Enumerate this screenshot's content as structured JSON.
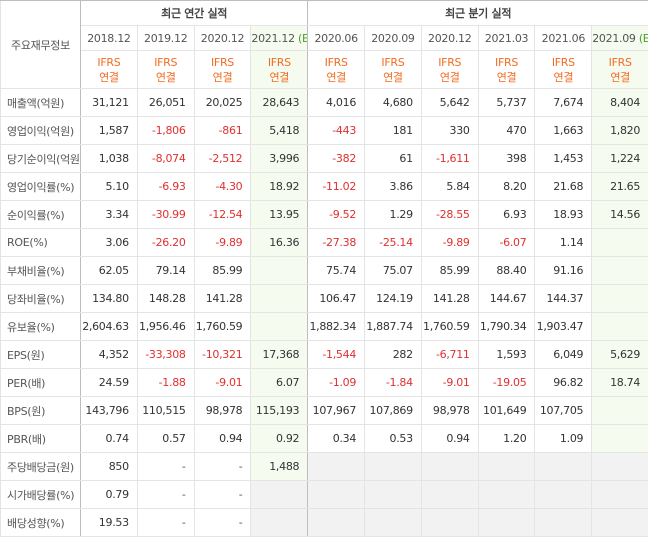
{
  "table": {
    "corner_label": "주요재무정보",
    "section_headers": [
      {
        "label": "최근 연간 실적",
        "span": 4
      },
      {
        "label": "최근 분기 실적",
        "span": 6
      }
    ],
    "periods": [
      {
        "label": "2018.12"
      },
      {
        "label": "2019.12"
      },
      {
        "label": "2020.12"
      },
      {
        "label": "2021.12",
        "mark": "(E)"
      },
      {
        "label": "2020.06"
      },
      {
        "label": "2020.09"
      },
      {
        "label": "2020.12"
      },
      {
        "label": "2021.03"
      },
      {
        "label": "2021.06"
      },
      {
        "label": "2021.09",
        "mark": "(E)"
      }
    ],
    "accounting_basis": {
      "standard": "IFRS",
      "scope": "연결"
    },
    "groups": [
      {
        "rows": [
          {
            "label": "매출액(억원)",
            "cells": [
              "31,121",
              "26,051",
              "20,025",
              "28,643",
              "4,016",
              "4,680",
              "5,642",
              "5,737",
              "7,674",
              "8,404"
            ]
          },
          {
            "label": "영업이익(억원)",
            "cells": [
              "1,587",
              "-1,806",
              "-861",
              "5,418",
              "-443",
              "181",
              "330",
              "470",
              "1,663",
              "1,820"
            ]
          },
          {
            "label": "당기순이익(억원)",
            "cells": [
              "1,038",
              "-8,074",
              "-2,512",
              "3,996",
              "-382",
              "61",
              "-1,611",
              "398",
              "1,453",
              "1,224"
            ]
          }
        ]
      },
      {
        "rows": [
          {
            "label": "영업이익률(%)",
            "cells": [
              "5.10",
              "-6.93",
              "-4.30",
              "18.92",
              "-11.02",
              "3.86",
              "5.84",
              "8.20",
              "21.68",
              "21.65"
            ]
          },
          {
            "label": "순이익률(%)",
            "cells": [
              "3.34",
              "-30.99",
              "-12.54",
              "13.95",
              "-9.52",
              "1.29",
              "-28.55",
              "6.93",
              "18.93",
              "14.56"
            ]
          },
          {
            "label": "ROE(%)",
            "cells": [
              "3.06",
              "-26.20",
              "-9.89",
              "16.36",
              "-27.38",
              "-25.14",
              "-9.89",
              "-6.07",
              "1.14",
              null
            ]
          }
        ]
      },
      {
        "rows": [
          {
            "label": "부채비율(%)",
            "cells": [
              "62.05",
              "79.14",
              "85.99",
              null,
              "75.74",
              "75.07",
              "85.99",
              "88.40",
              "91.16",
              null
            ]
          },
          {
            "label": "당좌비율(%)",
            "cells": [
              "134.80",
              "148.28",
              "141.28",
              null,
              "106.47",
              "124.19",
              "141.28",
              "144.67",
              "144.37",
              null
            ]
          },
          {
            "label": "유보율(%)",
            "cells": [
              "2,604.63",
              "1,956.46",
              "1,760.59",
              null,
              "1,882.34",
              "1,887.74",
              "1,760.59",
              "1,790.34",
              "1,903.47",
              null
            ]
          }
        ]
      },
      {
        "rows": [
          {
            "label": "EPS(원)",
            "cells": [
              "4,352",
              "-33,308",
              "-10,321",
              "17,368",
              "-1,544",
              "282",
              "-6,711",
              "1,593",
              "6,049",
              "5,629"
            ]
          },
          {
            "label": "PER(배)",
            "cells": [
              "24.59",
              "-1.88",
              "-9.01",
              "6.07",
              "-1.09",
              "-1.84",
              "-9.01",
              "-19.05",
              "96.82",
              "18.74"
            ]
          },
          {
            "label": "BPS(원)",
            "cells": [
              "143,796",
              "110,515",
              "98,978",
              "115,193",
              "107,967",
              "107,869",
              "98,978",
              "101,649",
              "107,705",
              null
            ]
          },
          {
            "label": "PBR(배)",
            "cells": [
              "0.74",
              "0.57",
              "0.94",
              "0.92",
              "0.34",
              "0.53",
              "0.94",
              "1.20",
              "1.09",
              null
            ]
          }
        ]
      },
      {
        "rows": [
          {
            "label": "주당배당금(원)",
            "cells": [
              "850",
              "-",
              "-",
              "1,488",
              null,
              null,
              null,
              null,
              null,
              null
            ]
          },
          {
            "label": "시가배당률(%)",
            "cells": [
              "0.79",
              "-",
              "-",
              null,
              null,
              null,
              null,
              null,
              null,
              null
            ]
          },
          {
            "label": "배당성향(%)",
            "cells": [
              "19.53",
              "-",
              "-",
              null,
              null,
              null,
              null,
              null,
              null,
              null
            ]
          }
        ]
      }
    ]
  }
}
